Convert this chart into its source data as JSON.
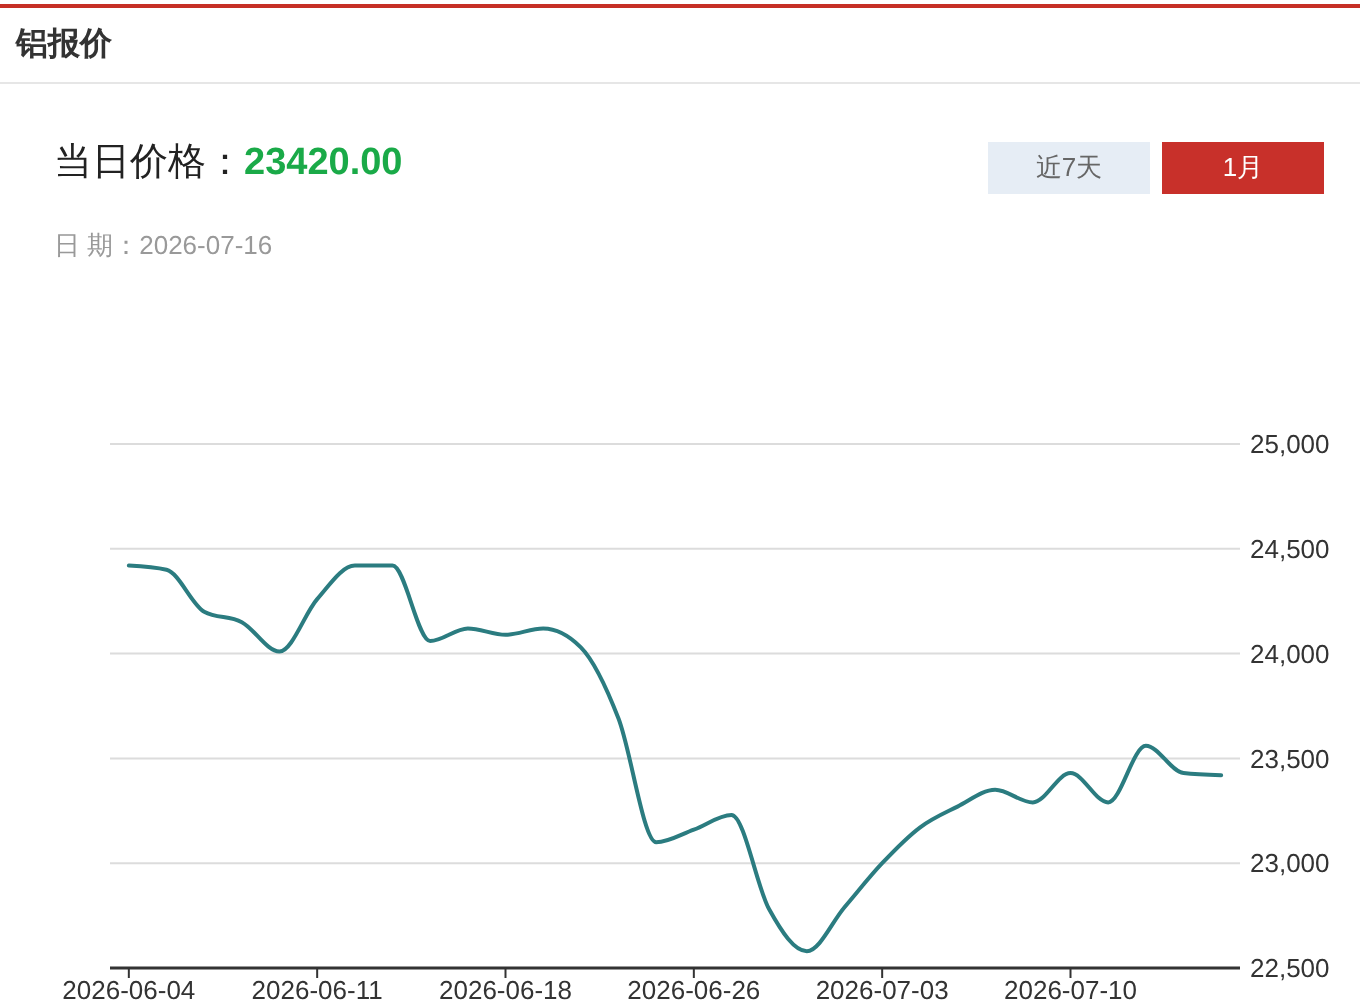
{
  "chart_data": {
    "type": "line",
    "title": "铝报价",
    "annotations": [
      "当日价格：",
      "23420.00",
      "日 期：2026-07-16",
      "近7天",
      "1月"
    ],
    "categories": [
      "2026-06-04",
      null,
      null,
      null,
      null,
      "2026-06-11",
      null,
      null,
      null,
      null,
      "2026-06-18",
      null,
      null,
      null,
      null,
      "2026-06-26",
      null,
      null,
      null,
      null,
      "2026-07-03",
      null,
      null,
      null,
      null,
      "2026-07-10",
      null,
      null,
      null,
      null
    ],
    "series": [
      {
        "color": "#2b7c80",
        "values": [
          24420,
          24400,
          24200,
          24150,
          24010,
          24260,
          24420,
          24420,
          24060,
          24120,
          24090,
          24120,
          24030,
          23690,
          23100,
          23160,
          23230,
          22780,
          22580,
          22790,
          23000,
          23170,
          23270,
          23350,
          23290,
          23430,
          23290,
          23560,
          23430,
          23420
        ]
      }
    ],
    "ylim": [
      22500,
      25000
    ],
    "yticks": [
      {
        "value": 22500,
        "label": "22,500"
      },
      {
        "value": 23000,
        "label": "23,000"
      },
      {
        "value": 23500,
        "label": "23,500"
      },
      {
        "value": 24000,
        "label": "24,000"
      },
      {
        "value": 24500,
        "label": "24,500"
      },
      {
        "value": 25000,
        "label": "25,000"
      }
    ],
    "grid": "y"
  }
}
